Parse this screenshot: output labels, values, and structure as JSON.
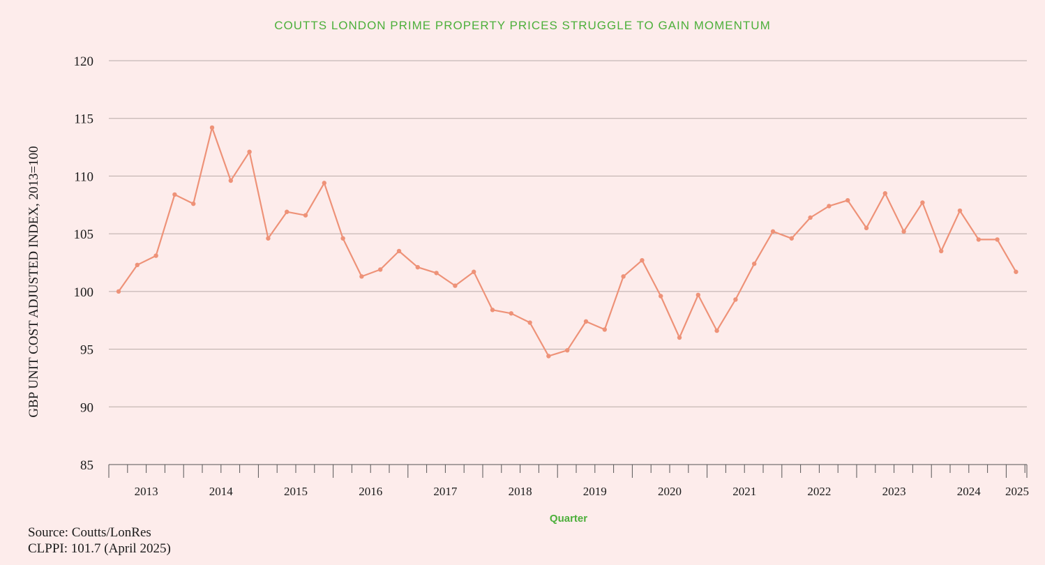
{
  "chart_data": {
    "type": "line",
    "title": "COUTTS LONDON PRIME PROPERTY PRICES STRUGGLE TO GAIN MOMENTUM",
    "xlabel": "Quarter",
    "ylabel": "GBP UNIT COST ADJUSTED INDEX, 2013=100",
    "ylim": [
      85,
      120
    ],
    "yticks": [
      85,
      90,
      95,
      100,
      105,
      110,
      115,
      120
    ],
    "year_labels": [
      "2013",
      "2014",
      "2015",
      "2016",
      "2017",
      "2018",
      "2019",
      "2020",
      "2021",
      "2022",
      "2023",
      "2024",
      "2025"
    ],
    "quarters_per_year": 4,
    "grid": true,
    "series": [
      {
        "name": "CLPPI",
        "color": "#ee9278",
        "values": [
          100.0,
          102.3,
          103.1,
          108.4,
          107.6,
          114.2,
          109.6,
          112.1,
          104.6,
          106.9,
          106.6,
          109.4,
          104.6,
          101.3,
          101.9,
          103.5,
          102.1,
          101.6,
          100.5,
          101.7,
          98.4,
          98.1,
          97.3,
          94.4,
          94.9,
          97.4,
          96.7,
          101.3,
          102.7,
          99.6,
          96.0,
          99.7,
          96.6,
          99.3,
          102.4,
          105.2,
          104.6,
          106.4,
          107.4,
          107.9,
          105.5,
          108.5,
          105.2,
          107.7,
          103.5,
          107.0,
          104.5,
          104.5,
          101.7
        ]
      }
    ]
  },
  "footer": {
    "source": "Source: Coutts/LonRes",
    "clppi": "CLPPI: 101.7 (April 2025)"
  },
  "colors": {
    "background": "#fdeceb",
    "title": "#4caf3a",
    "line": "#ee9278",
    "grid": "#b8aaa8",
    "axis": "#555555"
  }
}
